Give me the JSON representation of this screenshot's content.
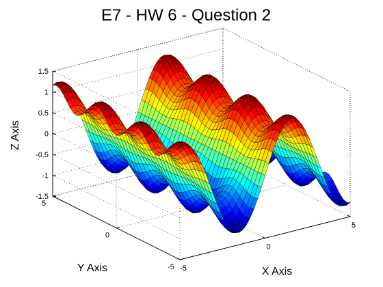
{
  "chart_data": {
    "type": "surface",
    "title": "E7 - HW 6 - Question 2",
    "xlabel": "X Axis",
    "ylabel": "Y Axis",
    "zlabel": "Z Axis",
    "xlim": [
      -5,
      5
    ],
    "ylim": [
      -5,
      5
    ],
    "zlim": [
      -1.5,
      1.5
    ],
    "x_ticks": [
      "-5",
      "0",
      "5"
    ],
    "y_ticks": [
      "-5",
      "0",
      "5"
    ],
    "z_ticks": [
      "-1.5",
      "-1",
      "-0.5",
      "0",
      "0.5",
      "1",
      "1.5"
    ],
    "grid": true,
    "colormap": "jet",
    "surface": "z = sin(x) * (1 - 0.25·cos(2y))  (approximate shape read from the plot: waves along x, ripples along y)"
  }
}
